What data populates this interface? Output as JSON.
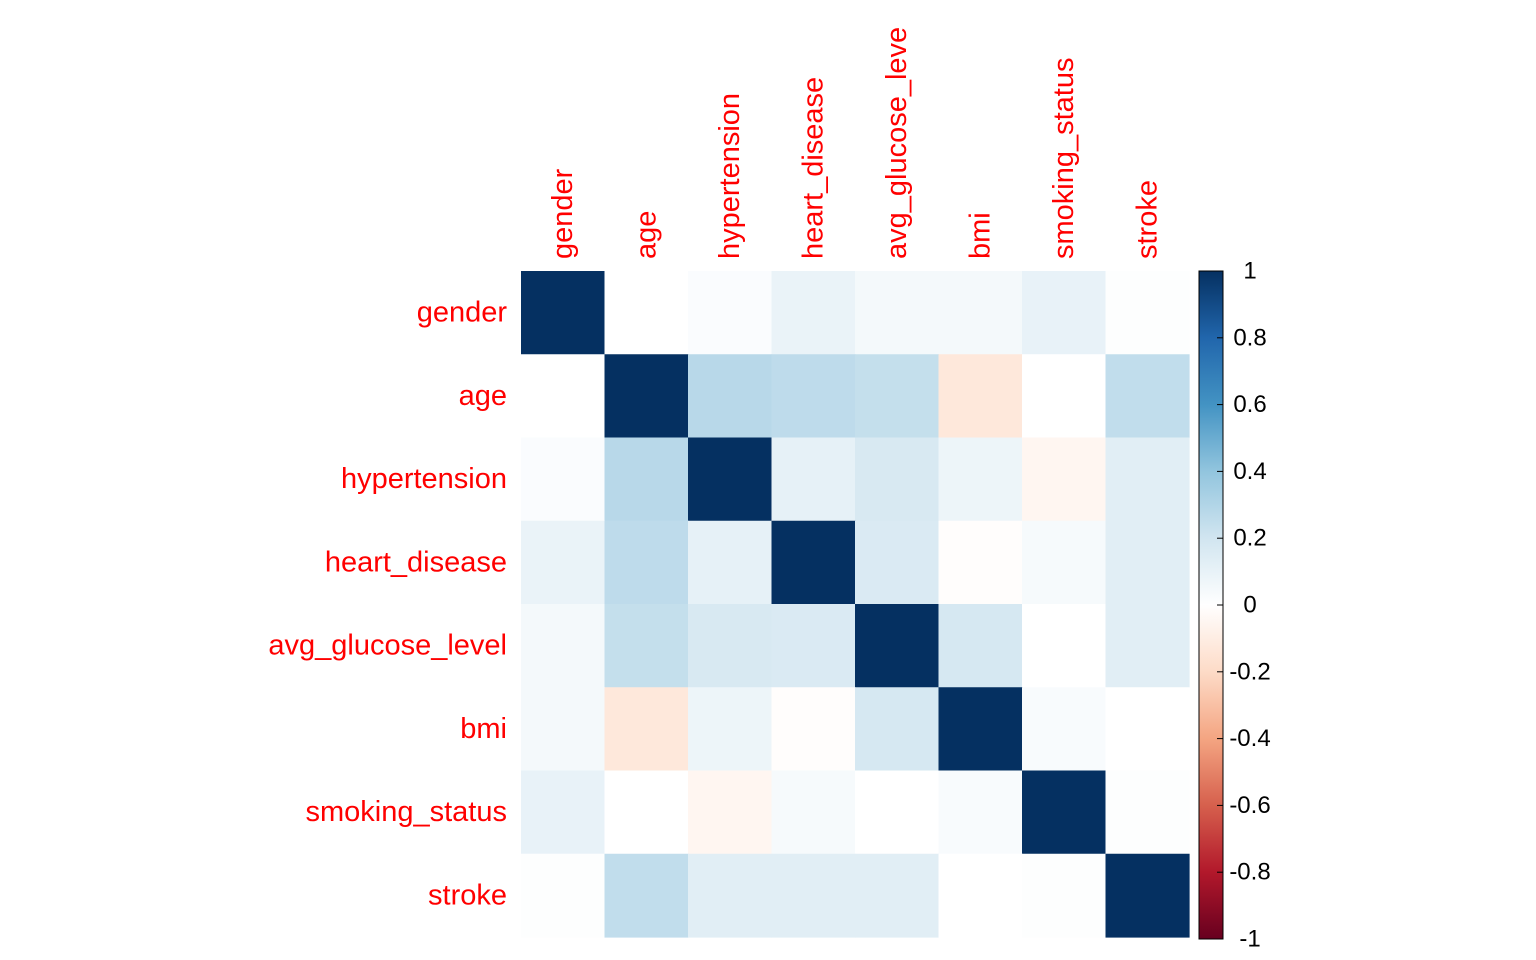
{
  "chart_data": {
    "type": "heatmap",
    "title": "",
    "variables": [
      "gender",
      "age",
      "hypertension",
      "heart_disease",
      "avg_glucose_level",
      "bmi",
      "smoking_status",
      "stroke"
    ],
    "column_labels": [
      "gender",
      "age",
      "hypertension",
      "heart_disease",
      "avg_glucose_leve",
      "bmi",
      "smoking_status",
      "stroke"
    ],
    "matrix": [
      [
        1.0,
        0.0,
        0.02,
        0.09,
        0.05,
        0.05,
        0.1,
        0.01
      ],
      [
        0.0,
        1.0,
        0.28,
        0.26,
        0.24,
        -0.13,
        0.0,
        0.25
      ],
      [
        0.02,
        0.28,
        1.0,
        0.11,
        0.17,
        0.08,
        -0.05,
        0.13
      ],
      [
        0.09,
        0.26,
        0.11,
        1.0,
        0.16,
        -0.01,
        0.04,
        0.13
      ],
      [
        0.05,
        0.24,
        0.17,
        0.16,
        1.0,
        0.18,
        0.0,
        0.13
      ],
      [
        0.05,
        -0.13,
        0.08,
        -0.01,
        0.18,
        1.0,
        0.03,
        0.0
      ],
      [
        0.1,
        0.0,
        -0.05,
        0.04,
        0.0,
        0.03,
        1.0,
        0.01
      ],
      [
        0.01,
        0.25,
        0.13,
        0.13,
        0.13,
        0.0,
        0.01,
        1.0
      ]
    ],
    "color_scale": {
      "range": [
        -1,
        1
      ],
      "ticks": [
        "1",
        "0.8",
        "0.6",
        "0.4",
        "0.2",
        "0",
        "-0.2",
        "-0.4",
        "-0.6",
        "-0.8",
        "-1"
      ],
      "stops": [
        "#67001F",
        "#B2182B",
        "#D6604D",
        "#F4A582",
        "#FDDBC7",
        "#FFFFFF",
        "#D1E5F0",
        "#92C5DE",
        "#4393C3",
        "#2166AC",
        "#053061"
      ]
    },
    "label_color": "#FF0000",
    "legend_position": "right"
  }
}
